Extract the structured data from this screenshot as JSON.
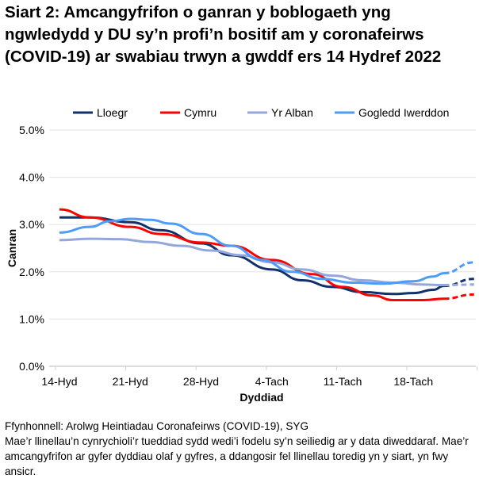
{
  "chart_data": {
    "type": "line",
    "title": "Siart 2: Amcangyfrifon o ganran y boblogaeth yng ngwledydd y DU sy’n profi’n bositif am y coronafeirws (COVID-19) ar swabiau trwyn a gwddf ers 14 Hydref 2022",
    "xlabel": "Dyddiad",
    "ylabel": "Canran",
    "x_tick_labels": [
      "14-Hyd",
      "21-Hyd",
      "28-Hyd",
      "4-Tach",
      "11-Tach",
      "18-Tach"
    ],
    "x_days_since_start_of_axis_note": "x values are days from 14 Oct 2022",
    "y_tick_labels": [
      "0.0%",
      "1.0%",
      "2.0%",
      "3.0%",
      "4.0%",
      "5.0%"
    ],
    "ylim": [
      0,
      5
    ],
    "grid": true,
    "legend_placement": "top",
    "projection_from_day": 38,
    "series": [
      {
        "name": "Lloegr",
        "color": "#12316b",
        "x": [
          0,
          3,
          7,
          10,
          14,
          17,
          21,
          24,
          27,
          30,
          33,
          35,
          37,
          38,
          41
        ],
        "values": [
          3.15,
          3.15,
          3.05,
          2.88,
          2.6,
          2.35,
          2.05,
          1.82,
          1.68,
          1.57,
          1.53,
          1.55,
          1.62,
          1.7,
          1.85
        ]
      },
      {
        "name": "Cymru",
        "color": "#ff0000",
        "x": [
          0,
          3,
          7,
          10,
          14,
          17,
          21,
          25,
          28,
          31,
          33,
          36,
          38,
          41
        ],
        "values": [
          3.32,
          3.15,
          2.95,
          2.8,
          2.62,
          2.55,
          2.25,
          1.95,
          1.68,
          1.5,
          1.4,
          1.4,
          1.43,
          1.52
        ]
      },
      {
        "name": "Yr Alban",
        "color": "#94a7dc",
        "x": [
          0,
          3,
          6,
          9,
          12,
          15,
          18,
          21,
          24,
          27,
          30,
          33,
          36,
          38,
          41
        ],
        "values": [
          2.67,
          2.7,
          2.69,
          2.63,
          2.55,
          2.45,
          2.35,
          2.2,
          2.05,
          1.92,
          1.82,
          1.77,
          1.73,
          1.72,
          1.73
        ]
      },
      {
        "name": "Gogledd Iwerddon",
        "color": "#4d9cf7",
        "x": [
          0,
          3,
          5,
          7,
          9,
          11,
          14,
          17,
          20,
          23,
          26,
          29,
          32,
          35,
          37,
          38,
          41
        ],
        "values": [
          2.83,
          2.95,
          3.07,
          3.12,
          3.1,
          3.02,
          2.8,
          2.55,
          2.25,
          2.0,
          1.85,
          1.77,
          1.75,
          1.8,
          1.9,
          1.97,
          2.2
        ]
      }
    ]
  },
  "notes": {
    "source": "Ffynhonnell: Arolwg Heintiadau Coronafeirws (COVID-19), SYG",
    "footnote": "Mae’r llinellau’n cynrychioli’r tueddiad sydd wedi’i fodelu sy’n seiliedig ar y data diweddaraf. Mae’r amcangyfrifon ar gyfer dyddiau olaf y gyfres, a ddangosir fel llinellau toredig yn y siart, yn fwy ansicr."
  }
}
